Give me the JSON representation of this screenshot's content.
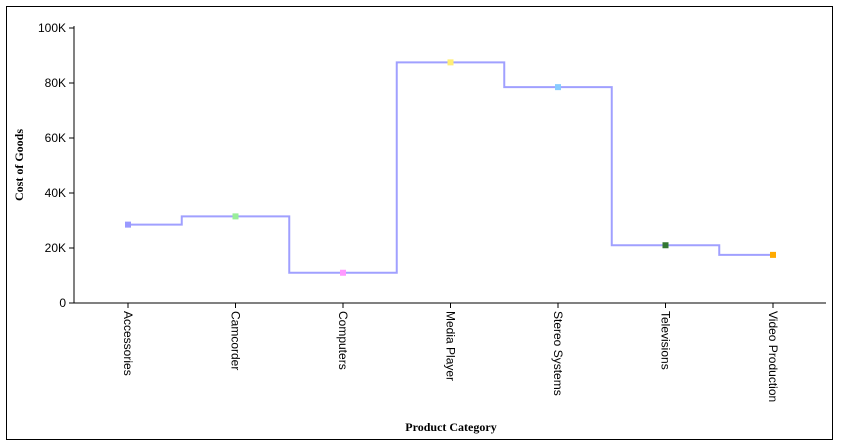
{
  "chart_data": {
    "type": "line",
    "interpolation": "step",
    "title": "",
    "xlabel": "Product Category",
    "ylabel": "Cost of Goods",
    "categories": [
      "Accessories",
      "Camcorder",
      "Computers",
      "Media Player",
      "Stereo Systems",
      "Televisions",
      "Video Production"
    ],
    "values": [
      28500,
      31500,
      11000,
      87500,
      78500,
      21000,
      17500
    ],
    "point_colors": [
      "#9999ff",
      "#99ee99",
      "#ff99ff",
      "#ffee77",
      "#88ccff",
      "#337733",
      "#ffaa00"
    ],
    "line_color": "#a0a0ff",
    "ylim": [
      0,
      100000
    ],
    "yticks": [
      0,
      20000,
      40000,
      60000,
      80000,
      100000
    ],
    "ytick_labels": [
      "0",
      "20K",
      "40K",
      "60K",
      "80K",
      "100K"
    ],
    "grid": false,
    "legend": "none"
  }
}
